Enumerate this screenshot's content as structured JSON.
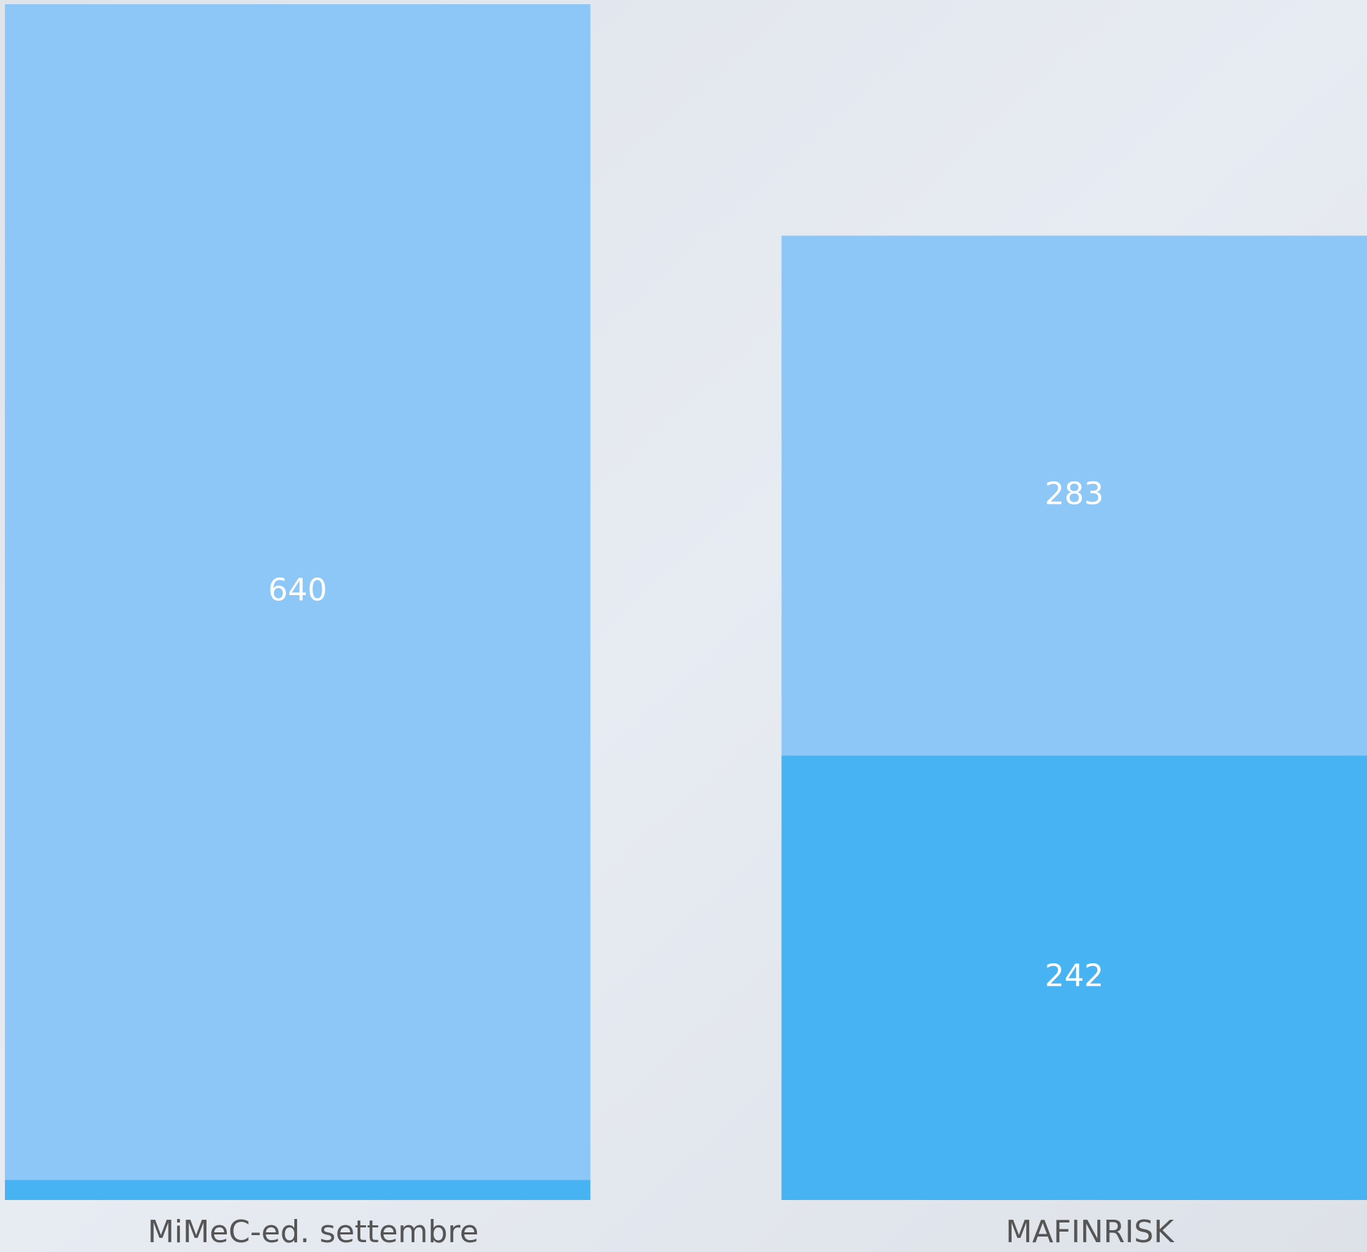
{
  "chart_data": {
    "type": "stacked-bar",
    "categories": [
      "MiMeC-ed. settembre",
      "MAFINRISK"
    ],
    "series": [
      {
        "color": "#47b3f3",
        "values": [
          11,
          242
        ]
      },
      {
        "color": "#8dc7f7",
        "values": [
          640,
          283
        ]
      }
    ],
    "ylim": [
      0,
      651
    ]
  }
}
